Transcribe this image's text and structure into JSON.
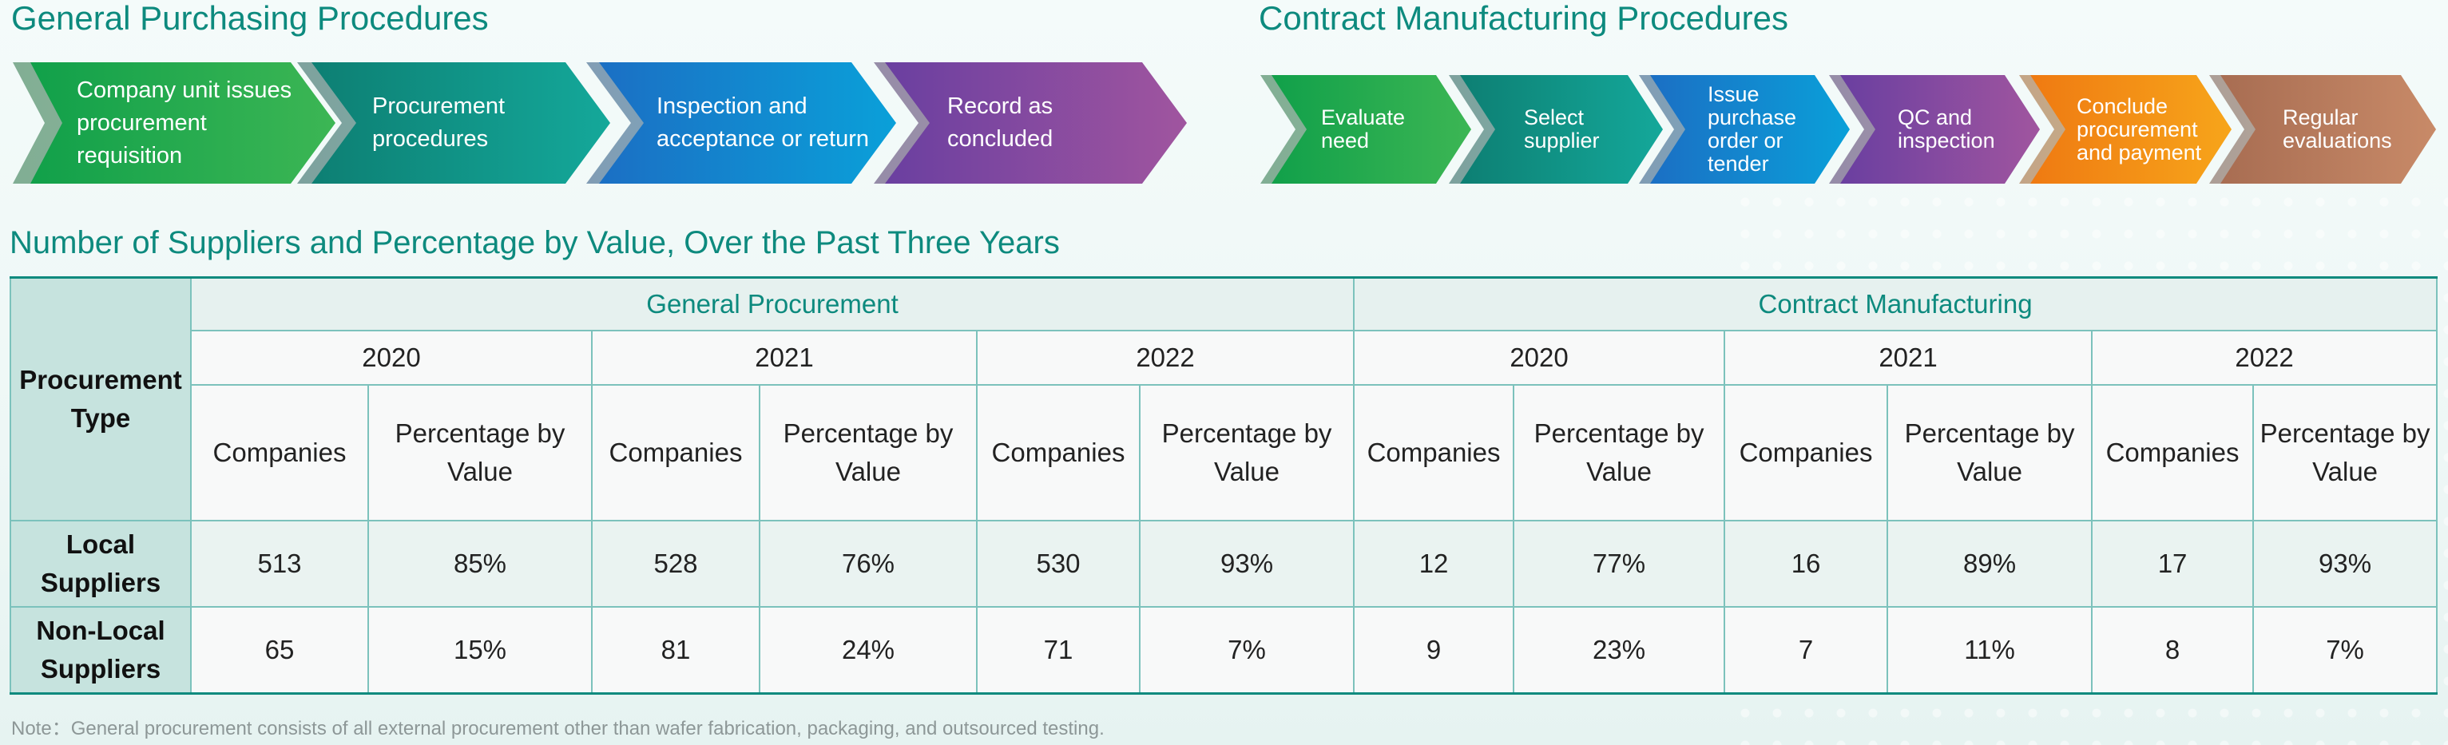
{
  "general_flow": {
    "title": "General Purchasing Procedures",
    "steps": [
      "Company unit issues procurement requisition",
      "Procurement procedures",
      "Inspection and acceptance or return",
      "Record as concluded"
    ]
  },
  "contract_flow": {
    "title": "Contract Manufacturing Procedures",
    "steps": [
      "Evaluate need",
      "Select supplier",
      "Issue purchase order or tender",
      "QC and inspection",
      "Conclude procurement and payment",
      "Regular evaluations"
    ]
  },
  "table": {
    "title": "Number of Suppliers and Percentage by Value, Over the Past Three Years",
    "type_header": "Procurement Type",
    "groups": [
      "General Procurement",
      "Contract Manufacturing"
    ],
    "years": [
      "2020",
      "2021",
      "2022",
      "2020",
      "2021",
      "2022"
    ],
    "col_labels": [
      "Companies",
      "Percentage by Value"
    ],
    "rows": [
      {
        "label": "Local Suppliers",
        "cells": [
          "513",
          "85%",
          "528",
          "76%",
          "530",
          "93%",
          "12",
          "77%",
          "16",
          "89%",
          "17",
          "93%"
        ]
      },
      {
        "label": "Non-Local Suppliers",
        "cells": [
          "65",
          "15%",
          "81",
          "24%",
          "71",
          "7%",
          "9",
          "23%",
          "7",
          "11%",
          "8",
          "7%"
        ]
      }
    ]
  },
  "note": "Note：General procurement consists of all external procurement other than wafer fabrication, packaging, and outsourced testing."
}
